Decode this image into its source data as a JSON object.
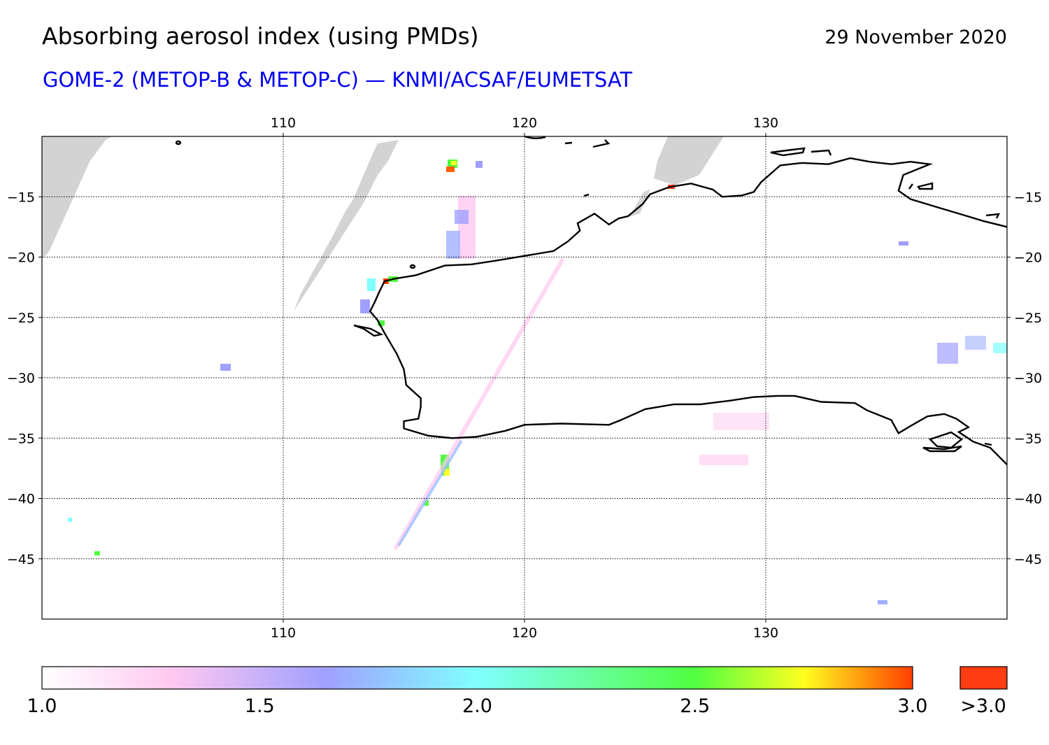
{
  "header": {
    "title": "Absorbing aerosol index (using PMDs)",
    "date": "29 November 2020",
    "subtitle": "GOME-2 (METOP-B & METOP-C) — KNMI/ACSAF/EUMETSAT"
  },
  "map": {
    "lon_range": [
      100,
      140
    ],
    "lat_range": [
      -50,
      -10
    ],
    "lon_ticks": [
      110,
      120,
      130
    ],
    "lon_tick_labels": [
      "110",
      "120",
      "130"
    ],
    "lat_ticks": [
      -15,
      -20,
      -25,
      -30,
      -35,
      -40,
      -45
    ],
    "lat_tick_labels": [
      "−15",
      "−20",
      "−25",
      "−30",
      "−35",
      "−40",
      "−45"
    ],
    "coastline": [
      [
        114.0,
        -22.8
      ],
      [
        114.2,
        -22.0
      ],
      [
        114.6,
        -21.8
      ],
      [
        115.5,
        -21.5
      ],
      [
        116.7,
        -20.7
      ],
      [
        117.8,
        -20.6
      ],
      [
        118.8,
        -20.3
      ],
      [
        120.0,
        -19.9
      ],
      [
        121.2,
        -19.5
      ],
      [
        121.8,
        -18.7
      ],
      [
        122.3,
        -17.8
      ],
      [
        122.2,
        -17.2
      ],
      [
        122.9,
        -16.4
      ],
      [
        123.5,
        -17.3
      ],
      [
        123.9,
        -16.8
      ],
      [
        124.3,
        -16.6
      ],
      [
        124.9,
        -15.6
      ],
      [
        125.2,
        -14.8
      ],
      [
        126.0,
        -14.2
      ],
      [
        126.9,
        -13.9
      ],
      [
        127.8,
        -14.4
      ],
      [
        128.2,
        -15.0
      ],
      [
        129.0,
        -14.9
      ],
      [
        129.5,
        -14.6
      ],
      [
        129.8,
        -13.8
      ],
      [
        130.2,
        -13.1
      ],
      [
        130.6,
        -12.4
      ],
      [
        131.5,
        -12.2
      ],
      [
        132.6,
        -12.3
      ],
      [
        133.5,
        -11.8
      ],
      [
        134.3,
        -12.1
      ],
      [
        135.2,
        -12.3
      ],
      [
        136.0,
        -12.1
      ],
      [
        136.8,
        -12.3
      ],
      [
        135.7,
        -13.2
      ],
      [
        135.5,
        -14.5
      ],
      [
        136.0,
        -15.2
      ],
      [
        137.0,
        -15.8
      ],
      [
        138.0,
        -16.4
      ],
      [
        139.0,
        -17.0
      ],
      [
        140.0,
        -17.5
      ]
    ],
    "south_coast": [
      [
        114.0,
        -22.8
      ],
      [
        113.8,
        -23.7
      ],
      [
        113.6,
        -24.5
      ],
      [
        113.9,
        -25.2
      ],
      [
        114.2,
        -26.3
      ],
      [
        114.7,
        -28.0
      ],
      [
        115.0,
        -29.3
      ],
      [
        115.1,
        -30.6
      ],
      [
        115.7,
        -31.7
      ],
      [
        115.7,
        -32.4
      ],
      [
        115.6,
        -33.4
      ],
      [
        115.0,
        -33.6
      ],
      [
        115.0,
        -34.2
      ],
      [
        116.0,
        -34.8
      ],
      [
        117.0,
        -35.0
      ],
      [
        118.0,
        -34.9
      ],
      [
        119.2,
        -34.4
      ],
      [
        120.0,
        -33.9
      ],
      [
        121.5,
        -33.8
      ],
      [
        123.5,
        -33.9
      ],
      [
        124.0,
        -33.5
      ],
      [
        125.0,
        -32.6
      ],
      [
        126.2,
        -32.2
      ],
      [
        127.3,
        -32.2
      ],
      [
        128.5,
        -31.9
      ],
      [
        129.5,
        -31.6
      ],
      [
        130.5,
        -31.5
      ],
      [
        131.2,
        -31.5
      ],
      [
        132.3,
        -32.0
      ],
      [
        133.7,
        -32.1
      ],
      [
        134.2,
        -32.7
      ],
      [
        135.2,
        -33.5
      ],
      [
        135.5,
        -34.6
      ],
      [
        136.0,
        -34.0
      ],
      [
        136.7,
        -33.2
      ],
      [
        137.4,
        -33.0
      ],
      [
        137.9,
        -33.4
      ],
      [
        138.4,
        -34.1
      ],
      [
        138.0,
        -34.5
      ],
      [
        138.6,
        -35.3
      ],
      [
        139.3,
        -35.8
      ],
      [
        139.8,
        -36.8
      ],
      [
        140.0,
        -37.2
      ]
    ],
    "colors": {
      "background": "#ffffff",
      "no_data": "#d3d3d3",
      "coastline": "#000000",
      "grid": "#000000"
    }
  },
  "colorbar": {
    "min": 1.0,
    "max": 3.0,
    "tick_values": [
      1.0,
      1.5,
      2.0,
      2.5,
      3.0
    ],
    "tick_labels": [
      "1.0",
      "1.5",
      "2.0",
      "2.5",
      "3.0"
    ],
    "overflow_label": ">3.0",
    "overflow_color": "#ff3d10",
    "stops": [
      {
        "value": 1.0,
        "color": "#ffffff"
      },
      {
        "value": 1.3,
        "color": "#ffc8f0"
      },
      {
        "value": 1.65,
        "color": "#a0a0ff"
      },
      {
        "value": 2.0,
        "color": "#80ffff"
      },
      {
        "value": 2.5,
        "color": "#50ff40"
      },
      {
        "value": 2.75,
        "color": "#ffff20"
      },
      {
        "value": 3.0,
        "color": "#ff4000"
      }
    ]
  }
}
